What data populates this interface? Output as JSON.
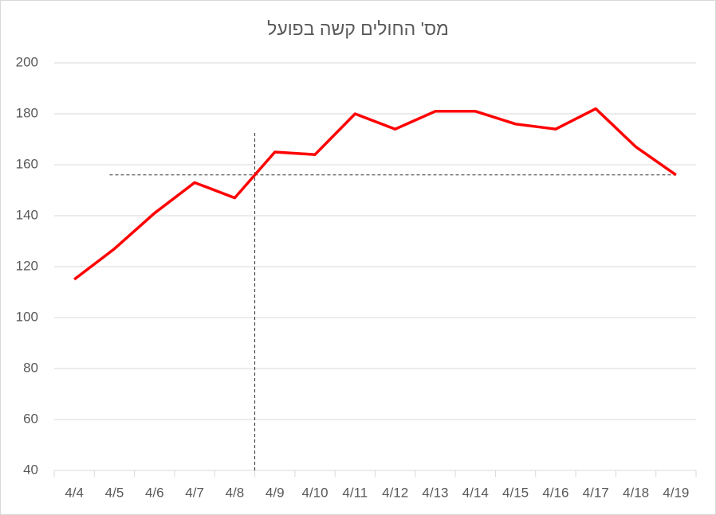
{
  "chart_data": {
    "type": "line",
    "title": "מס' החולים קשה בפועל",
    "categories": [
      "4/4",
      "4/5",
      "4/6",
      "4/7",
      "4/8",
      "4/9",
      "4/10",
      "4/11",
      "4/12",
      "4/13",
      "4/14",
      "4/15",
      "4/16",
      "4/17",
      "4/18",
      "4/19"
    ],
    "series": [
      {
        "color": "#ff0000",
        "values": [
          115,
          127,
          141,
          153,
          147,
          165,
          164,
          180,
          174,
          181,
          181,
          176,
          174,
          182,
          167,
          156
        ]
      }
    ],
    "ylim": [
      40,
      200
    ],
    "yticks": [
      40,
      60,
      80,
      100,
      120,
      140,
      160,
      180,
      200
    ],
    "grid": true,
    "reference_y": 156
  }
}
